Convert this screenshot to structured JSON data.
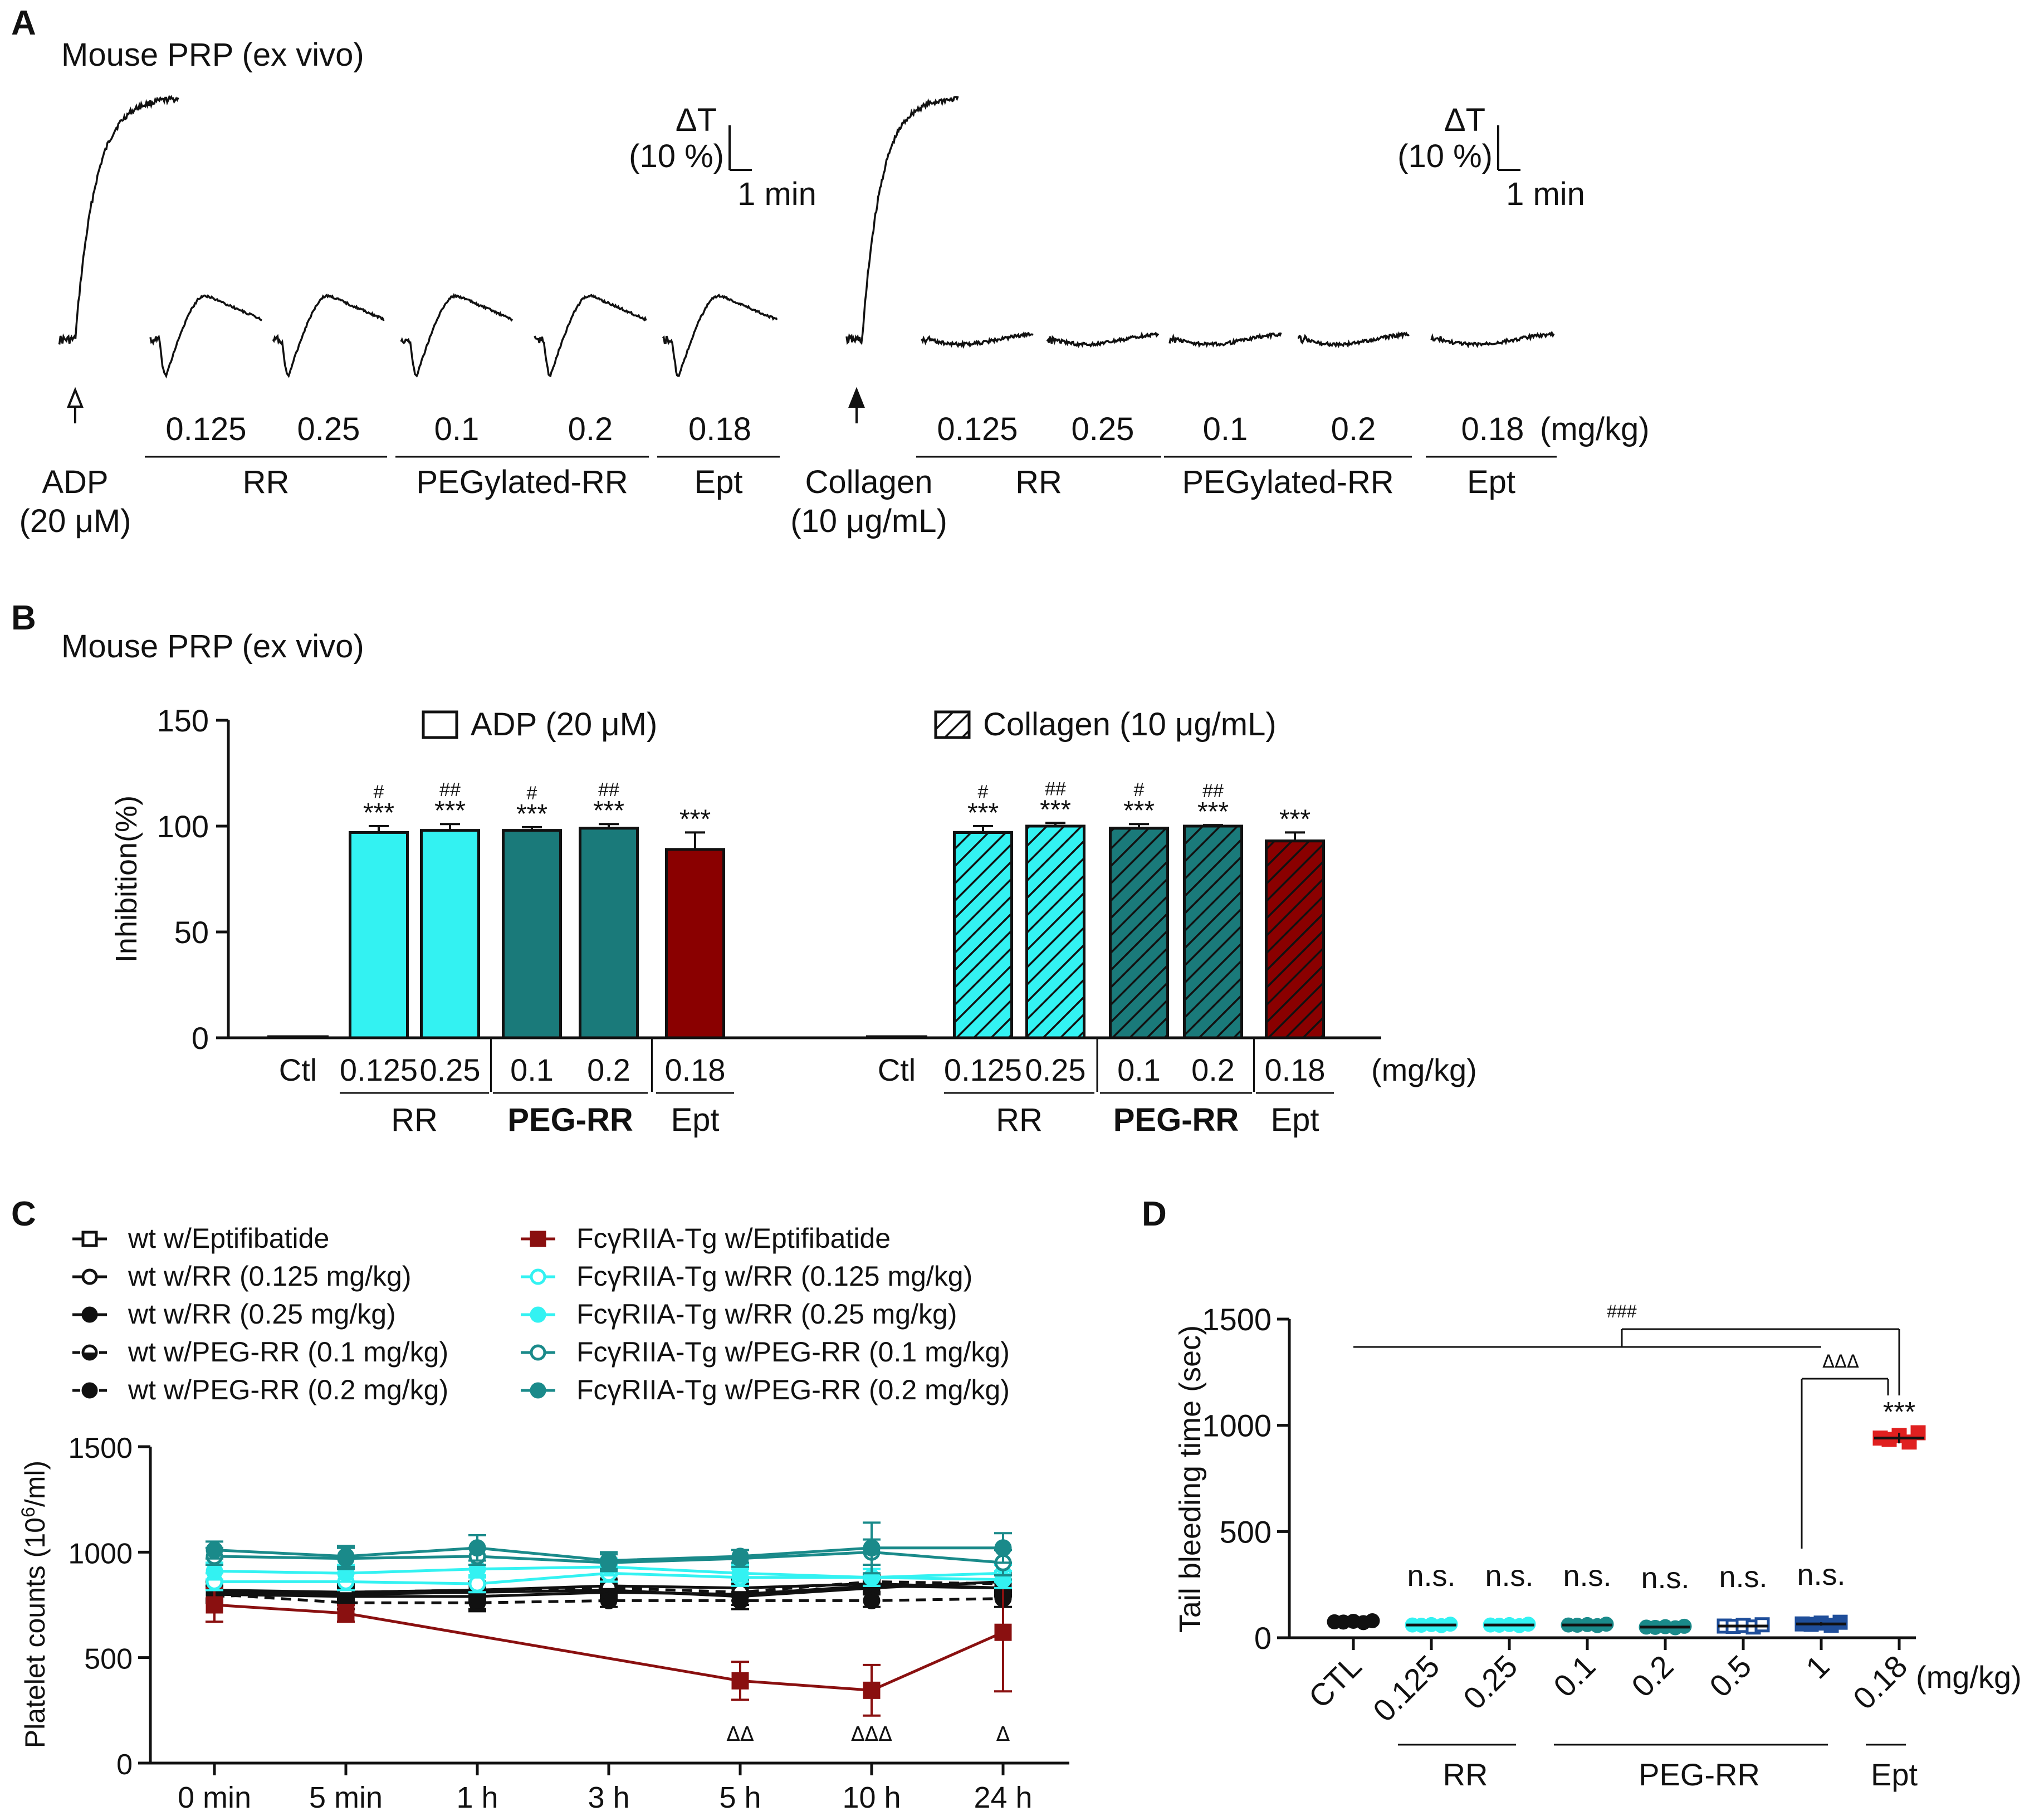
{
  "chart_data": [
    {
      "panel": "A",
      "type": "line",
      "title": "Mouse PRP (ex vivo)",
      "x_unit": "(mg/kg)",
      "scale_bar": {
        "y": "ΔT",
        "y_value": "(10 %)",
        "x": "1 min"
      },
      "groups": [
        {
          "agonist": "ADP",
          "agonist_conc": "(20 μM)",
          "traces": [
            {
              "group": "",
              "dose": "",
              "kind": "full_aggregation"
            },
            {
              "group": "RR",
              "dose": "0.125",
              "kind": "shape_change"
            },
            {
              "group": "RR",
              "dose": "0.25",
              "kind": "shape_change"
            },
            {
              "group": "PEGylated-RR",
              "dose": "0.1",
              "kind": "shape_change"
            },
            {
              "group": "PEGylated-RR",
              "dose": "0.2",
              "kind": "shape_change"
            },
            {
              "group": "Ept",
              "dose": "0.18",
              "kind": "shape_change"
            }
          ]
        },
        {
          "agonist": "Collagen",
          "agonist_conc": "(10 μg/mL)",
          "traces": [
            {
              "group": "",
              "dose": "",
              "kind": "full_aggregation"
            },
            {
              "group": "RR",
              "dose": "0.125",
              "kind": "flat"
            },
            {
              "group": "RR",
              "dose": "0.25",
              "kind": "flat"
            },
            {
              "group": "PEGylated-RR",
              "dose": "0.1",
              "kind": "flat"
            },
            {
              "group": "PEGylated-RR",
              "dose": "0.2",
              "kind": "flat"
            },
            {
              "group": "Ept",
              "dose": "0.18",
              "kind": "flat"
            }
          ]
        }
      ]
    },
    {
      "panel": "B",
      "type": "bar",
      "title": "Mouse PRP (ex vivo)",
      "ylabel": "Inhibition(%)",
      "ylim": [
        0,
        150
      ],
      "yticks": [
        0,
        50,
        100,
        150
      ],
      "x_unit": "(mg/kg)",
      "categories": [
        "Ctl",
        "0.125",
        "0.25",
        "0.1",
        "0.2",
        "0.18"
      ],
      "category_groups": [
        {
          "label": "RR",
          "members": [
            "0.125",
            "0.25"
          ]
        },
        {
          "label": "PEG-RR",
          "members": [
            "0.1",
            "0.2"
          ]
        },
        {
          "label": "Ept",
          "members": [
            "0.18"
          ]
        }
      ],
      "colors": {
        "RR": "#33f2f2",
        "PEG-RR": "#1a7a7a",
        "Ept": "#8a0000"
      },
      "series": [
        {
          "name": "ADP (20 μM)",
          "pattern": "solid",
          "values": [
            0,
            97,
            98,
            98,
            99,
            89
          ],
          "errors": [
            0,
            3,
            3,
            1.5,
            2,
            8
          ],
          "stars": [
            "",
            "***",
            "***",
            "***",
            "***",
            "***"
          ],
          "hash": [
            "",
            "#",
            "##",
            "#",
            "##",
            ""
          ]
        },
        {
          "name": "Collagen (10 μg/mL)",
          "pattern": "hatched",
          "values": [
            0,
            97,
            100,
            99,
            100,
            93
          ],
          "errors": [
            0,
            3,
            1.5,
            2,
            0.5,
            4
          ],
          "stars": [
            "",
            "***",
            "***",
            "***",
            "***",
            "***"
          ],
          "hash": [
            "",
            "#",
            "##",
            "#",
            "##",
            ""
          ]
        }
      ]
    },
    {
      "panel": "C",
      "type": "line",
      "ylabel": "Platelet counts (10",
      "ylabel_sup": "6",
      "ylabel_end": "/ml)",
      "ylim": [
        0,
        1500
      ],
      "yticks": [
        0,
        500,
        1000,
        1500
      ],
      "categories": [
        "0 min",
        "5 min",
        "1 h",
        "3 h",
        "5 h",
        "10 h",
        "24 h"
      ],
      "annotations": [
        {
          "index": 4,
          "text": "ΔΔ"
        },
        {
          "index": 5,
          "text": "ΔΔΔ"
        },
        {
          "index": 6,
          "text": "Δ"
        }
      ],
      "series": [
        {
          "name": "wt w/Eptifibatide",
          "color": "#111111",
          "marker": "square-open",
          "dash": false,
          "values": [
            820,
            810,
            820,
            840,
            830,
            850,
            830
          ],
          "errors": [
            40,
            40,
            40,
            30,
            40,
            40,
            40
          ]
        },
        {
          "name": "wt w/RR (0.125 mg/kg)",
          "color": "#111111",
          "marker": "circle-open",
          "dash": false,
          "values": [
            800,
            790,
            790,
            810,
            800,
            840,
            830
          ],
          "errors": [
            30,
            30,
            60,
            30,
            50,
            30,
            30
          ]
        },
        {
          "name": "wt w/RR (0.25 mg/kg)",
          "color": "#111111",
          "marker": "circle-filled",
          "dash": false,
          "values": [
            810,
            800,
            810,
            820,
            790,
            830,
            860
          ],
          "errors": [
            30,
            30,
            40,
            30,
            40,
            30,
            40
          ]
        },
        {
          "name": "wt w/PEG-RR (0.1 mg/kg)",
          "color": "#111111",
          "marker": "circle-half",
          "dash": true,
          "values": [
            790,
            810,
            820,
            830,
            810,
            860,
            850
          ],
          "errors": [
            30,
            30,
            40,
            30,
            40,
            30,
            40
          ]
        },
        {
          "name": "wt w/PEG-RR (0.2 mg/kg)",
          "color": "#111111",
          "marker": "circle-filled",
          "dash": true,
          "values": [
            800,
            760,
            760,
            770,
            770,
            770,
            780
          ],
          "errors": [
            30,
            30,
            40,
            30,
            40,
            30,
            40
          ]
        },
        {
          "name": "FcγRIIA-Tg w/Eptifibatide",
          "color": "#8a1010",
          "marker": "square-filled",
          "dash": false,
          "values": [
            750,
            710,
            null,
            null,
            390,
            345,
            620
          ],
          "errors": [
            80,
            40,
            0,
            0,
            90,
            120,
            280
          ]
        },
        {
          "name": "FcγRIIA-Tg w/RR (0.125 mg/kg)",
          "color": "#33f2f2",
          "marker": "circle-open",
          "dash": false,
          "values": [
            860,
            860,
            850,
            900,
            880,
            880,
            900
          ],
          "errors": [
            40,
            40,
            40,
            40,
            40,
            40,
            40
          ]
        },
        {
          "name": "FcγRIIA-Tg w/RR (0.25 mg/kg)",
          "color": "#33f2f2",
          "marker": "circle-filled",
          "dash": false,
          "values": [
            910,
            900,
            920,
            930,
            900,
            880,
            870
          ],
          "errors": [
            40,
            40,
            40,
            40,
            40,
            40,
            40
          ]
        },
        {
          "name": "FcγRIIA-Tg w/PEG-RR (0.1 mg/kg)",
          "color": "#1a8a8a",
          "marker": "circle-open",
          "dash": false,
          "values": [
            980,
            970,
            980,
            950,
            970,
            1000,
            950
          ],
          "errors": [
            40,
            50,
            40,
            40,
            40,
            60,
            60
          ]
        },
        {
          "name": "FcγRIIA-Tg w/PEG-RR (0.2 mg/kg)",
          "color": "#1a8a8a",
          "marker": "circle-filled",
          "dash": false,
          "values": [
            1010,
            980,
            1020,
            960,
            980,
            1020,
            1020
          ],
          "errors": [
            40,
            50,
            60,
            40,
            30,
            120,
            70
          ]
        }
      ]
    },
    {
      "panel": "D",
      "type": "scatter",
      "ylabel": "Tail bleeding time (sec)",
      "ylim": [
        0,
        1500
      ],
      "yticks": [
        0,
        500,
        1000,
        1500
      ],
      "x_unit": "(mg/kg)",
      "categories": [
        "CTL",
        "0.125",
        "0.25",
        "0.1",
        "0.2",
        "0.5",
        "1",
        "0.18"
      ],
      "category_groups": [
        {
          "label": "RR",
          "members": [
            "0.125",
            "0.25"
          ]
        },
        {
          "label": "PEG-RR",
          "members": [
            "0.1",
            "0.2",
            "0.5",
            "1"
          ]
        },
        {
          "label": "Ept",
          "members": [
            "0.18"
          ]
        }
      ],
      "means": [
        75,
        60,
        60,
        60,
        50,
        55,
        65,
        940
      ],
      "errors": [
        5,
        4,
        4,
        4,
        4,
        6,
        8,
        25
      ],
      "colors": [
        "#111111",
        "#33f2f2",
        "#33f2f2",
        "#1a8a8a",
        "#1a8a8a",
        "#1f4e9a",
        "#1f4e9a",
        "#e02020"
      ],
      "markers": [
        "circle-filled",
        "circle-filled",
        "circle-filled",
        "circle-filled",
        "circle-filled",
        "square-open",
        "square-filled",
        "square-filled"
      ],
      "labels": [
        "",
        "n.s.",
        "n.s.",
        "n.s.",
        "n.s.",
        "n.s.",
        "n.s.",
        "***"
      ],
      "brackets": [
        {
          "from": "CTL",
          "to": "0.18",
          "text": "###"
        },
        {
          "from": "1",
          "to": "0.18",
          "text": "ΔΔΔ"
        }
      ]
    }
  ],
  "panel_letters": [
    "A",
    "B",
    "C",
    "D"
  ],
  "colors": {
    "cyan": "#33f2f2",
    "teal": "#1a7a7a",
    "darkred": "#8a0000",
    "red": "#e02020",
    "navy": "#1f4e9a"
  }
}
